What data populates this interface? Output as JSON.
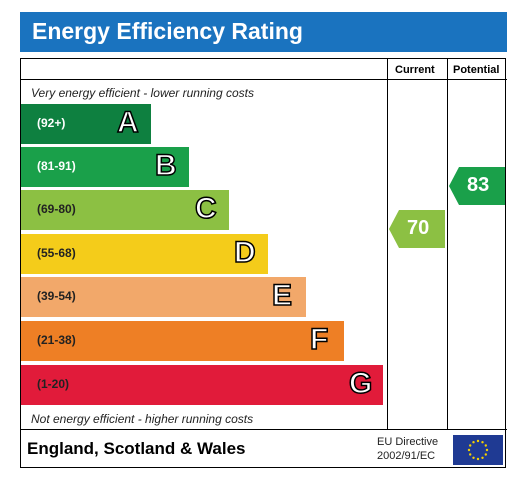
{
  "header": {
    "title": "Energy Efficiency Rating"
  },
  "columns": {
    "current": "Current",
    "potential": "Potential"
  },
  "notes": {
    "top": "Very energy efficient - lower running costs",
    "bottom": "Not energy efficient - higher running costs"
  },
  "footer": {
    "region": "England, Scotland & Wales",
    "directive_line1": "EU Directive",
    "directive_line2": "2002/91/EC"
  },
  "colors": {
    "title_bar": "#1a73bf",
    "A": "#0e8040",
    "B": "#1aa04a",
    "C": "#8cc043",
    "D": "#f4cc1a",
    "E": "#f2a86a",
    "F": "#ee7f25",
    "G": "#e11b3a"
  },
  "chart_data": {
    "type": "bar",
    "title": "Energy Efficiency Rating",
    "bands": [
      {
        "range": "(92+)",
        "letter": "A"
      },
      {
        "range": "(81-91)",
        "letter": "B"
      },
      {
        "range": "(69-80)",
        "letter": "C"
      },
      {
        "range": "(55-68)",
        "letter": "D"
      },
      {
        "range": "(39-54)",
        "letter": "E"
      },
      {
        "range": "(21-38)",
        "letter": "F"
      },
      {
        "range": "(1-20)",
        "letter": "G"
      }
    ],
    "current": {
      "value": 70,
      "band": "C"
    },
    "potential": {
      "value": 83,
      "band": "B"
    }
  }
}
